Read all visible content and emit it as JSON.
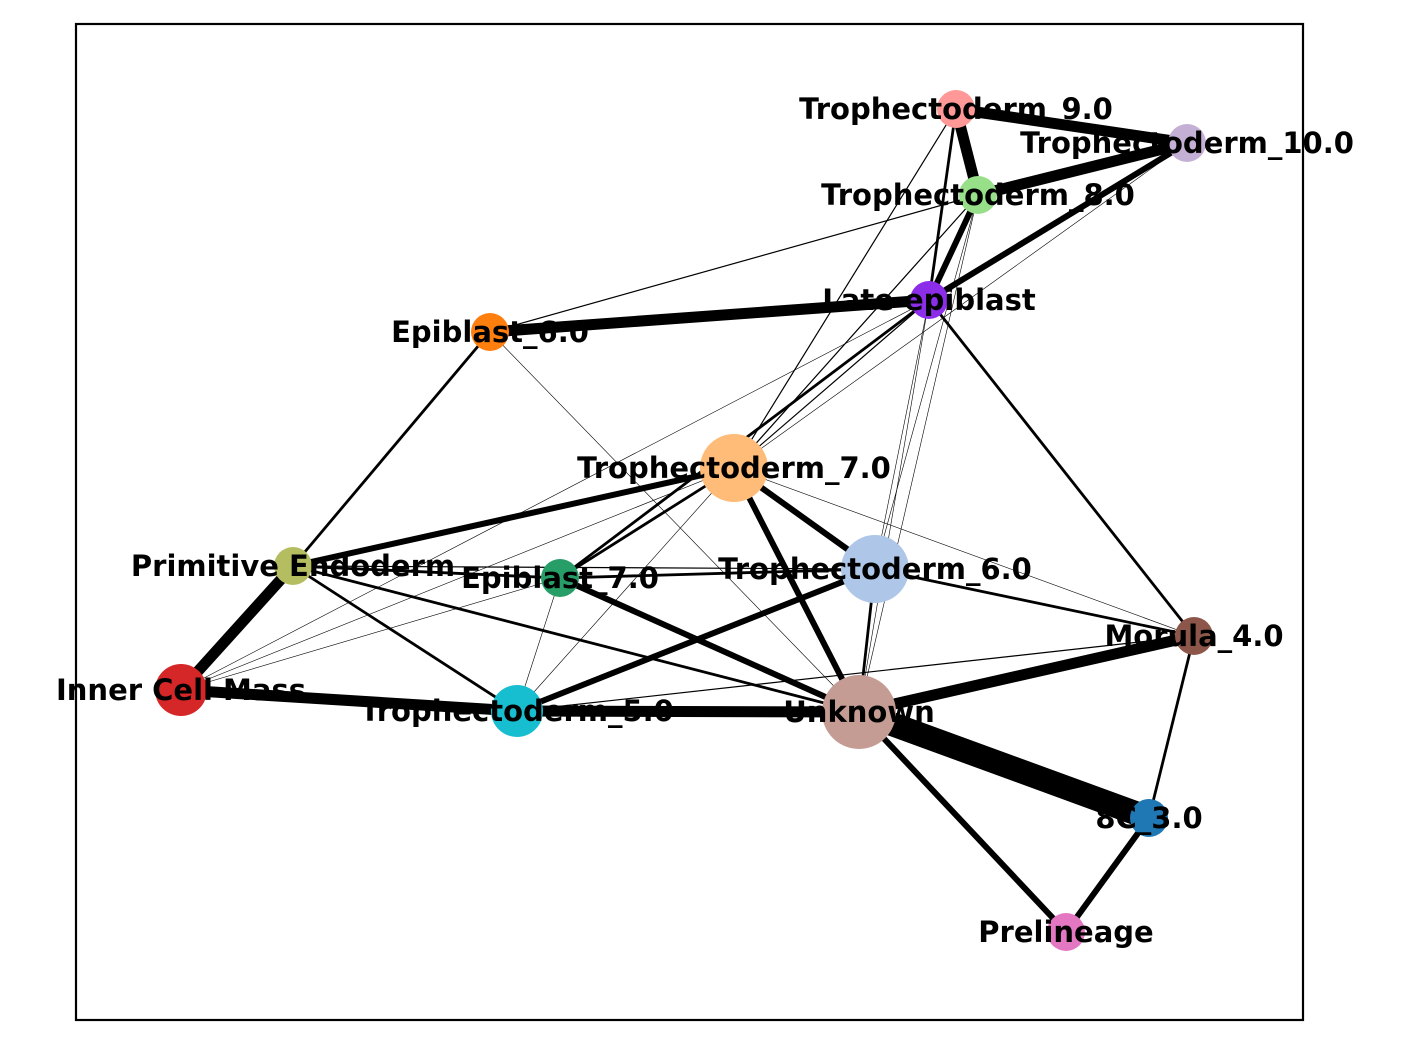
{
  "nodes": [
    {
      "id": "trophectoderm_9",
      "label": "Trophectoderm_9.0",
      "color": "#ff9896",
      "size": "small"
    },
    {
      "id": "trophectoderm_10",
      "label": "Trophectoderm_10.0",
      "color": "#c5b0d5",
      "size": "small"
    },
    {
      "id": "trophectoderm_8",
      "label": "Trophectoderm_8.0",
      "color": "#98df8a",
      "size": "small"
    },
    {
      "id": "late_epiblast",
      "label": "Late epiblast",
      "color": "#8c2dea",
      "size": "small"
    },
    {
      "id": "epiblast_6",
      "label": "Epiblast_6.0",
      "color": "#ff7f0e",
      "size": "small"
    },
    {
      "id": "trophectoderm_7",
      "label": "Trophectoderm_7.0",
      "color": "#ffbb78",
      "size": "large"
    },
    {
      "id": "primitive_endoderm",
      "label": "Primitive Endoderm",
      "color": "#b5bd61",
      "size": "small"
    },
    {
      "id": "epiblast_7",
      "label": "Epiblast_7.0",
      "color": "#279e68",
      "size": "small"
    },
    {
      "id": "trophectoderm_6",
      "label": "Trophectoderm_6.0",
      "color": "#aec7e8",
      "size": "large"
    },
    {
      "id": "morula_4",
      "label": "Morula_4.0",
      "color": "#8c564b",
      "size": "small"
    },
    {
      "id": "inner_cell_mass",
      "label": "Inner Cell Mass",
      "color": "#d62728",
      "size": "medium"
    },
    {
      "id": "trophectoderm_5",
      "label": "Trophectoderm_5.0",
      "color": "#17becf",
      "size": "medium"
    },
    {
      "id": "unknown",
      "label": "Unknown",
      "color": "#c49c94",
      "size": "xlarge"
    },
    {
      "id": "8c_3",
      "label": "8C_3.0",
      "color": "#1f77b4",
      "size": "small"
    },
    {
      "id": "prelineage",
      "label": "Prelineage",
      "color": "#e377c2",
      "size": "small"
    }
  ],
  "edges": [
    {
      "source": "trophectoderm_9",
      "target": "trophectoderm_10",
      "weight": "heavy"
    },
    {
      "source": "trophectoderm_9",
      "target": "trophectoderm_8",
      "weight": "heavy"
    },
    {
      "source": "trophectoderm_8",
      "target": "trophectoderm_10",
      "weight": "heavy"
    },
    {
      "source": "late_epiblast",
      "target": "trophectoderm_10",
      "weight": "strong"
    },
    {
      "source": "late_epiblast",
      "target": "trophectoderm_8",
      "weight": "strong"
    },
    {
      "source": "late_epiblast",
      "target": "trophectoderm_9",
      "weight": "medium"
    },
    {
      "source": "epiblast_6",
      "target": "late_epiblast",
      "weight": "heavy"
    },
    {
      "source": "epiblast_6",
      "target": "trophectoderm_8",
      "weight": "thin"
    },
    {
      "source": "epiblast_6",
      "target": "primitive_endoderm",
      "weight": "medium"
    },
    {
      "source": "epiblast_6",
      "target": "unknown",
      "weight": "hair"
    },
    {
      "source": "trophectoderm_7",
      "target": "trophectoderm_9",
      "weight": "thin"
    },
    {
      "source": "trophectoderm_7",
      "target": "trophectoderm_8",
      "weight": "thin"
    },
    {
      "source": "trophectoderm_7",
      "target": "late_epiblast",
      "weight": "thin"
    },
    {
      "source": "trophectoderm_7",
      "target": "trophectoderm_10",
      "weight": "hair"
    },
    {
      "source": "trophectoderm_7",
      "target": "primitive_endoderm",
      "weight": "strong"
    },
    {
      "source": "trophectoderm_7",
      "target": "trophectoderm_6",
      "weight": "strong"
    },
    {
      "source": "trophectoderm_7",
      "target": "unknown",
      "weight": "strong"
    },
    {
      "source": "trophectoderm_7",
      "target": "epiblast_7",
      "weight": "medium"
    },
    {
      "source": "trophectoderm_7",
      "target": "morula_4",
      "weight": "hair"
    },
    {
      "source": "trophectoderm_7",
      "target": "inner_cell_mass",
      "weight": "hair"
    },
    {
      "source": "trophectoderm_7",
      "target": "trophectoderm_5",
      "weight": "hair"
    },
    {
      "source": "epiblast_7",
      "target": "late_epiblast",
      "weight": "medium"
    },
    {
      "source": "epiblast_7",
      "target": "trophectoderm_6",
      "weight": "medium"
    },
    {
      "source": "epiblast_7",
      "target": "unknown",
      "weight": "strong"
    },
    {
      "source": "epiblast_7",
      "target": "trophectoderm_5",
      "weight": "hair"
    },
    {
      "source": "epiblast_7",
      "target": "inner_cell_mass",
      "weight": "hair"
    },
    {
      "source": "primitive_endoderm",
      "target": "epiblast_7",
      "weight": "medium"
    },
    {
      "source": "primitive_endoderm",
      "target": "trophectoderm_6",
      "weight": "thin"
    },
    {
      "source": "primitive_endoderm",
      "target": "inner_cell_mass",
      "weight": "heavy"
    },
    {
      "source": "primitive_endoderm",
      "target": "trophectoderm_5",
      "weight": "medium"
    },
    {
      "source": "primitive_endoderm",
      "target": "unknown",
      "weight": "medium"
    },
    {
      "source": "trophectoderm_6",
      "target": "trophectoderm_8",
      "weight": "hair"
    },
    {
      "source": "trophectoderm_6",
      "target": "late_epiblast",
      "weight": "hair"
    },
    {
      "source": "trophectoderm_6",
      "target": "trophectoderm_5",
      "weight": "strong"
    },
    {
      "source": "trophectoderm_6",
      "target": "unknown",
      "weight": "medium"
    },
    {
      "source": "trophectoderm_6",
      "target": "morula_4",
      "weight": "medium"
    },
    {
      "source": "inner_cell_mass",
      "target": "trophectoderm_5",
      "weight": "heavy"
    },
    {
      "source": "inner_cell_mass",
      "target": "late_epiblast",
      "weight": "hair"
    },
    {
      "source": "trophectoderm_5",
      "target": "unknown",
      "weight": "heavy"
    },
    {
      "source": "trophectoderm_5",
      "target": "morula_4",
      "weight": "thin"
    },
    {
      "source": "unknown",
      "target": "morula_4",
      "weight": "heavy"
    },
    {
      "source": "unknown",
      "target": "8c_3",
      "weight": "massive"
    },
    {
      "source": "unknown",
      "target": "prelineage",
      "weight": "strong"
    },
    {
      "source": "unknown",
      "target": "late_epiblast",
      "weight": "hair"
    },
    {
      "source": "unknown",
      "target": "trophectoderm_8",
      "weight": "hair"
    },
    {
      "source": "morula_4",
      "target": "late_epiblast",
      "weight": "medium"
    },
    {
      "source": "morula_4",
      "target": "8c_3",
      "weight": "medium"
    },
    {
      "source": "8c_3",
      "target": "prelineage",
      "weight": "strong"
    }
  ]
}
